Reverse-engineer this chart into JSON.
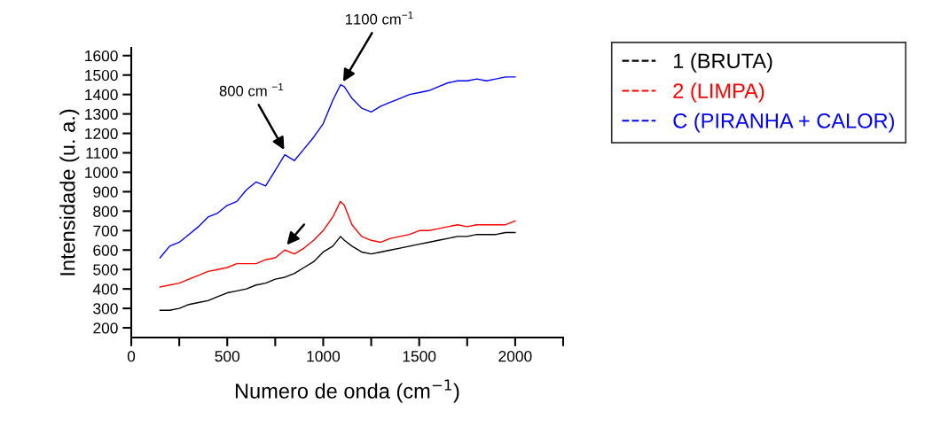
{
  "chart_data": {
    "type": "line",
    "xlabel": "Numero de onda (cm$^{−1}$)",
    "ylabel": "Intensidade (u. a.)",
    "xlim": [
      0,
      2250
    ],
    "ylim": [
      150,
      1640
    ],
    "xticks": [
      0,
      {
        "value": 250,
        "label": null
      },
      500,
      {
        "value": 750,
        "label": null
      },
      1000,
      {
        "value": 1250,
        "label": null
      },
      1500,
      {
        "value": 1750,
        "label": null
      },
      2000,
      {
        "value": 2250,
        "label": null
      }
    ],
    "yticks": [
      200,
      300,
      400,
      500,
      600,
      700,
      800,
      900,
      1000,
      1100,
      1200,
      1300,
      1400,
      1500,
      1600
    ],
    "grid": false,
    "legend": "top right",
    "marker": "none",
    "line_style": "solid",
    "x": [
      150,
      200,
      250,
      300,
      350,
      400,
      450,
      500,
      550,
      600,
      650,
      700,
      750,
      800,
      850,
      900,
      950,
      1000,
      1050,
      1090,
      1110,
      1150,
      1200,
      1250,
      1300,
      1350,
      1400,
      1450,
      1500,
      1550,
      1600,
      1650,
      1700,
      1750,
      1800,
      1850,
      1900,
      1950,
      2000
    ],
    "series": [
      {
        "name": "1 (BRUTA)",
        "color": "#000000",
        "values": [
          290,
          290,
          300,
          320,
          330,
          340,
          360,
          380,
          390,
          400,
          420,
          430,
          450,
          460,
          480,
          510,
          540,
          590,
          620,
          670,
          650,
          620,
          590,
          580,
          590,
          600,
          610,
          620,
          630,
          640,
          650,
          660,
          670,
          670,
          680,
          680,
          680,
          690,
          690
        ]
      },
      {
        "name": "2 (LIMPA)",
        "color": "#ff0000",
        "values": [
          410,
          420,
          430,
          450,
          470,
          490,
          500,
          510,
          530,
          530,
          530,
          550,
          560,
          600,
          580,
          610,
          650,
          700,
          770,
          850,
          830,
          730,
          670,
          650,
          640,
          660,
          670,
          680,
          700,
          700,
          710,
          720,
          730,
          720,
          730,
          730,
          730,
          730,
          750
        ]
      },
      {
        "name": "C (PIRANHA + CALOR)",
        "color": "#0000ff",
        "values": [
          560,
          620,
          640,
          680,
          720,
          770,
          790,
          830,
          850,
          910,
          950,
          930,
          1010,
          1090,
          1060,
          1120,
          1180,
          1250,
          1370,
          1450,
          1440,
          1380,
          1330,
          1310,
          1340,
          1360,
          1380,
          1400,
          1410,
          1420,
          1440,
          1460,
          1470,
          1470,
          1480,
          1470,
          1480,
          1490,
          1490
        ]
      }
    ],
    "annotations": [
      {
        "text": "800 cm $^{−1}$",
        "x": 800,
        "y": 1110
      },
      {
        "text": "1100 cm$^{−1}$",
        "x": 1100,
        "y": 1460
      }
    ]
  }
}
